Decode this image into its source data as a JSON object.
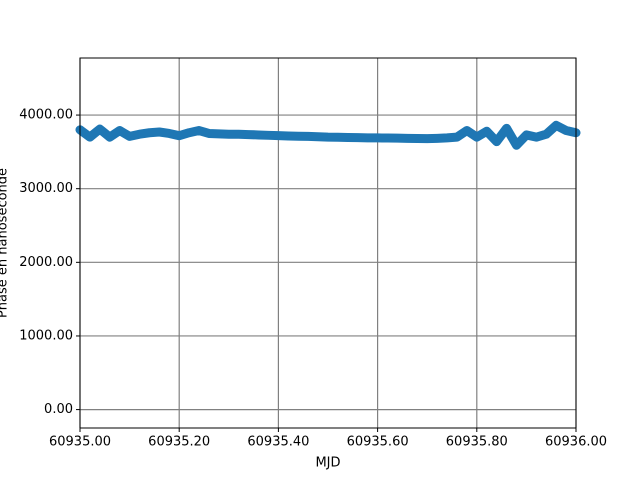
{
  "chart_data": {
    "type": "line",
    "xlabel": "MJD",
    "ylabel": "Phase en nanoseconde",
    "x": [
      60935.0,
      60935.02,
      60935.04,
      60935.06,
      60935.08,
      60935.1,
      60935.12,
      60935.14,
      60935.16,
      60935.18,
      60935.2,
      60935.22,
      60935.24,
      60935.26,
      60935.28,
      60935.3,
      60935.32,
      60935.34,
      60935.36,
      60935.38,
      60935.4,
      60935.42,
      60935.44,
      60935.46,
      60935.48,
      60935.5,
      60935.52,
      60935.54,
      60935.56,
      60935.58,
      60935.6,
      60935.62,
      60935.64,
      60935.66,
      60935.68,
      60935.7,
      60935.72,
      60935.74,
      60935.76,
      60935.78,
      60935.8,
      60935.82,
      60935.84,
      60935.86,
      60935.88,
      60935.9,
      60935.92,
      60935.94,
      60935.96,
      60935.98,
      60936.0
    ],
    "series": [
      {
        "color": "#1f77b4",
        "values": [
          3800,
          3700,
          3810,
          3700,
          3790,
          3710,
          3740,
          3760,
          3770,
          3750,
          3720,
          3760,
          3790,
          3750,
          3745,
          3740,
          3740,
          3735,
          3730,
          3725,
          3720,
          3715,
          3712,
          3710,
          3705,
          3700,
          3698,
          3695,
          3693,
          3690,
          3690,
          3688,
          3686,
          3684,
          3682,
          3680,
          3684,
          3690,
          3700,
          3790,
          3700,
          3780,
          3640,
          3820,
          3590,
          3730,
          3700,
          3740,
          3860,
          3790,
          3760
        ]
      }
    ],
    "xlim": [
      60935.0,
      60936.0
    ],
    "xticks": [
      {
        "value": 60935.0,
        "label": "60935.00"
      },
      {
        "value": 60935.2,
        "label": "60935.20"
      },
      {
        "value": 60935.4,
        "label": "60935.40"
      },
      {
        "value": 60935.6,
        "label": "60935.60"
      },
      {
        "value": 60935.8,
        "label": "60935.80"
      },
      {
        "value": 60936.0,
        "label": "60936.00"
      }
    ],
    "ylim": [
      -250,
      4775
    ],
    "yticks": [
      {
        "value": 0,
        "label": "0.00"
      },
      {
        "value": 1000,
        "label": "1000.00"
      },
      {
        "value": 2000,
        "label": "2000.00"
      },
      {
        "value": 3000,
        "label": "3000.00"
      },
      {
        "value": 4000,
        "label": "4000.00"
      }
    ],
    "grid": true
  }
}
